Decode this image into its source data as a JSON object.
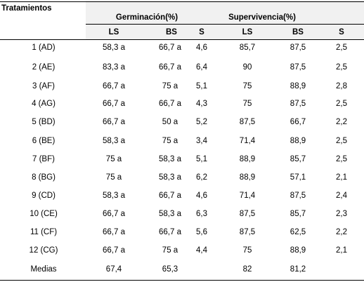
{
  "header": {
    "tratamientos": "Tratamientos",
    "germinacion": "Germinación(%)",
    "supervivencia": "Supervivencia(%)",
    "subcols": [
      "LS",
      "BS",
      "S",
      "LS",
      "BS",
      "S"
    ]
  },
  "rows": [
    [
      "1 (AD)",
      "58,3 a",
      "66,7 a",
      "4,6",
      "85,7",
      "87,5",
      "2,5"
    ],
    [
      "2 (AE)",
      "83,3 a",
      "66,7 a",
      "6,4",
      "90",
      "87,5",
      "2,5"
    ],
    [
      "3 (AF)",
      "66,7 a",
      "75 a",
      "5,1",
      "75",
      "88,9",
      "2,8"
    ],
    [
      "4 (AG)",
      "66,7 a",
      "66,7 a",
      "4,3",
      "75",
      "87,5",
      "2,5"
    ],
    [
      "5 (BD)",
      "66,7 a",
      "50 a",
      "5,2",
      "87,5",
      "66,7",
      "2,2"
    ],
    [
      "6 (BE)",
      "58,3 a",
      "75 a",
      "3,4",
      "71,4",
      "88,9",
      "2,5"
    ],
    [
      "7 (BF)",
      "75 a",
      "58,3 a",
      "5,1",
      "88,9",
      "85,7",
      "2,5"
    ],
    [
      "8 (BG)",
      "75 a",
      "58,3 a",
      "6,2",
      "88,9",
      "57,1",
      "2,1"
    ],
    [
      "9 (CD)",
      "58,3 a",
      "66,7 a",
      "4,6",
      "71,4",
      "87,5",
      "2,4"
    ],
    [
      "10 (CE)",
      "66,7 a",
      "58,3 a",
      "6,3",
      "87,5",
      "85,7",
      "2,3"
    ],
    [
      "11 (CF)",
      "66,7 a",
      "66,7 a",
      "5,6",
      "87,5",
      "62,5",
      "2,2"
    ],
    [
      "12 (CG)",
      "66,7 a",
      "75 a",
      "4,4",
      "75",
      "88,9",
      "2,1"
    ],
    [
      "Medias",
      "67,4",
      "65,3",
      "",
      "82",
      "81,2",
      ""
    ]
  ]
}
